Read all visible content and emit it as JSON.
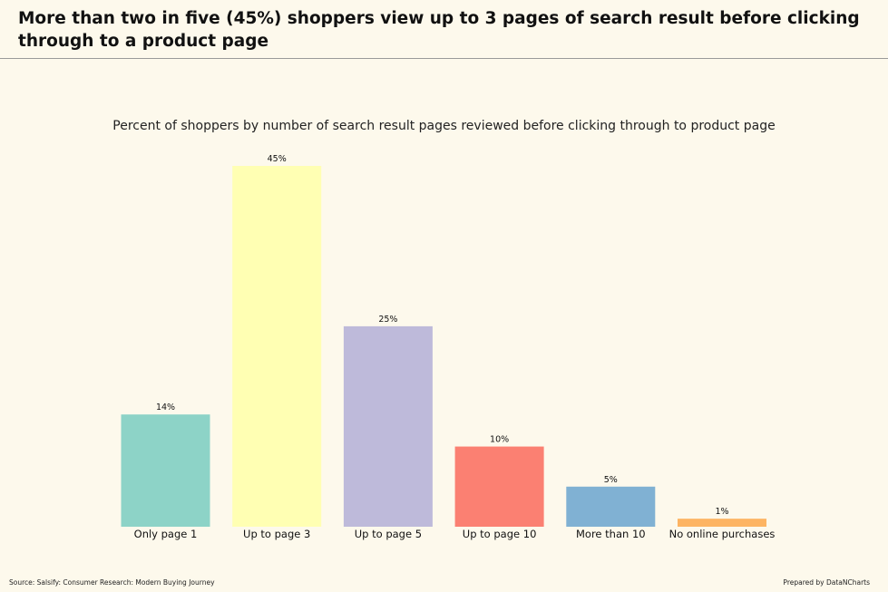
{
  "headline": "More than two in five (45%) shoppers view up to 3 pages of search result before clicking through to a product page",
  "footer": {
    "source": "Source: Salsify: Consumer Research: Modern Buying Journey",
    "credit": "Prepared by DataNCharts"
  },
  "chart_data": {
    "type": "bar",
    "title": "Percent of shoppers by number of search result pages reviewed before clicking through to product page",
    "xlabel": "",
    "ylabel": "",
    "categories": [
      "Only page 1",
      "Up to page 3",
      "Up to page 5",
      "Up to page 10",
      "More than 10",
      "No online purchases"
    ],
    "values": [
      14,
      45,
      25,
      10,
      5,
      1
    ],
    "data_labels": [
      "14%",
      "45%",
      "25%",
      "10%",
      "5%",
      "1%"
    ],
    "colors": [
      "#8dd3c7",
      "#ffffb3",
      "#bebada",
      "#fb8072",
      "#80b1d3",
      "#fdb462"
    ],
    "ylim": [
      0,
      45
    ],
    "grid": false,
    "legend": "none"
  }
}
